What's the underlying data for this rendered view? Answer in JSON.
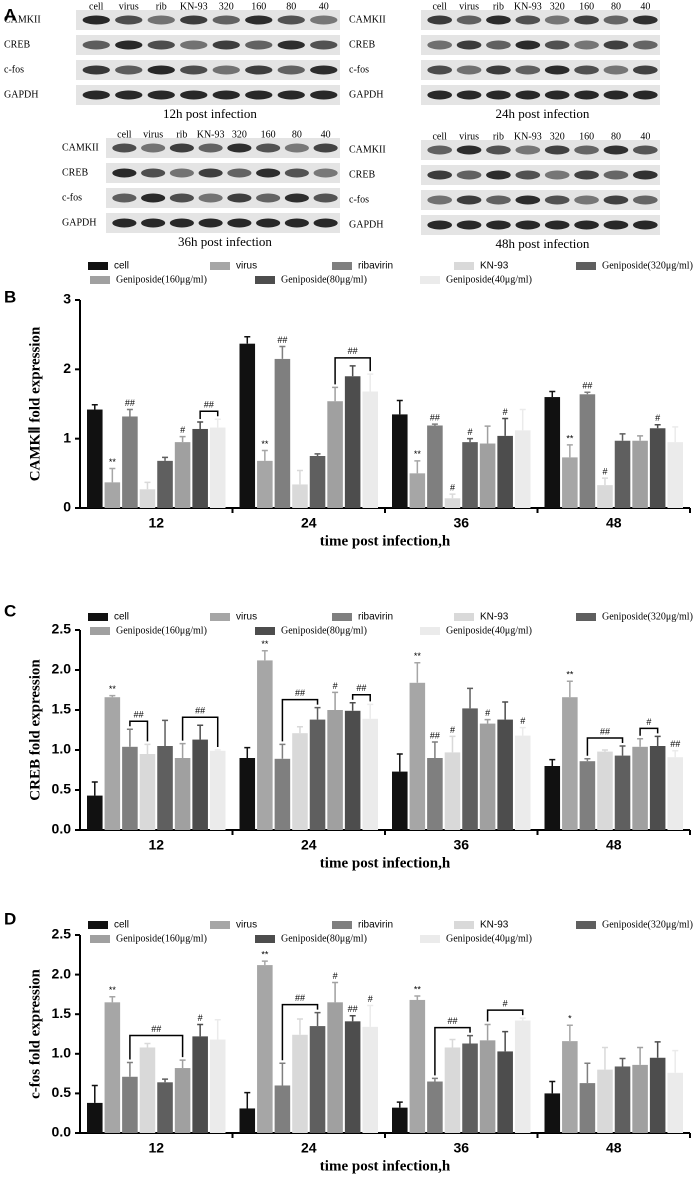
{
  "panel_labels": [
    "A",
    "B",
    "C",
    "D"
  ],
  "blots": [
    {
      "caption": "12h post infection",
      "lanes": [
        "cell",
        "virus",
        "rib",
        "KN-93",
        "320",
        "160",
        "80",
        "40"
      ],
      "rows": [
        "CAMKII",
        "CREB",
        "c-fos",
        "GAPDH"
      ]
    },
    {
      "caption": "24h post infection",
      "lanes": [
        "cell",
        "virus",
        "rib",
        "KN-93",
        "320",
        "160",
        "80",
        "40"
      ],
      "rows": [
        "CAMKII",
        "CREB",
        "c-fos",
        "GAPDH"
      ]
    },
    {
      "caption": "36h post infection",
      "lanes": [
        "cell",
        "virus",
        "rib",
        "KN-93",
        "320",
        "160",
        "80",
        "40"
      ],
      "rows": [
        "CAMKII",
        "CREB",
        "c-fos",
        "GAPDH"
      ]
    },
    {
      "caption": "48h post infection",
      "lanes": [
        "cell",
        "virus",
        "rib",
        "KN-93",
        "320",
        "160",
        "80",
        "40"
      ],
      "rows": [
        "CAMKII",
        "CREB",
        "c-fos",
        "GAPDH"
      ]
    }
  ],
  "chart_data": [
    {
      "type": "bar",
      "y_label": "CAMKⅡ fold expression",
      "x_label": "time post infection,h",
      "categories": [
        "12",
        "24",
        "36",
        "48"
      ],
      "ylim": [
        0,
        3
      ],
      "yticks": [
        0,
        1,
        2,
        3
      ],
      "series": [
        {
          "name": "cell",
          "color": "#111111",
          "values": [
            1.42,
            2.37,
            1.35,
            1.6
          ],
          "errors": [
            0.07,
            0.1,
            0.2,
            0.08
          ],
          "sig": [
            null,
            null,
            null,
            null
          ]
        },
        {
          "name": "virus",
          "color": "#a6a6a6",
          "values": [
            0.37,
            0.68,
            0.5,
            0.73
          ],
          "errors": [
            0.2,
            0.15,
            0.18,
            0.18
          ],
          "sig": [
            "**",
            "**",
            "**",
            "**"
          ]
        },
        {
          "name": "ribavirin",
          "color": "#7f7f7f",
          "values": [
            1.32,
            2.15,
            1.19,
            1.64
          ],
          "errors": [
            0.1,
            0.18,
            0.02,
            0.03
          ],
          "sig": [
            "##",
            "##",
            "##",
            "##"
          ]
        },
        {
          "name": "KN-93",
          "color": "#d9d9d9",
          "values": [
            0.27,
            0.34,
            0.14,
            0.33
          ],
          "errors": [
            0.1,
            0.2,
            0.06,
            0.1
          ],
          "sig": [
            null,
            null,
            "#",
            "#"
          ]
        },
        {
          "name": "Geniposide(320μg/ml)",
          "color": "#5f5f5f",
          "values": [
            0.68,
            0.75,
            0.95,
            0.97
          ],
          "errors": [
            0.05,
            0.03,
            0.05,
            0.1
          ],
          "sig": [
            null,
            null,
            "#",
            null
          ]
        },
        {
          "name": "Geniposide(160μg/ml)",
          "color": "#a0a0a0",
          "values": [
            0.95,
            1.54,
            0.93,
            0.97
          ],
          "errors": [
            0.08,
            0.2,
            0.25,
            0.07
          ],
          "sig": [
            "#",
            null,
            null,
            null
          ]
        },
        {
          "name": "Geniposide(80μg/ml)",
          "color": "#4d4d4d",
          "values": [
            1.14,
            1.9,
            1.04,
            1.15
          ],
          "errors": [
            0.1,
            0.15,
            0.25,
            0.05
          ],
          "sig": [
            null,
            null,
            "#",
            "#"
          ]
        },
        {
          "name": "Geniposide(40μg/ml)",
          "color": "#ebebeb",
          "values": [
            1.16,
            1.68,
            1.12,
            0.95
          ],
          "errors": [
            0.12,
            0.25,
            0.3,
            0.22
          ],
          "sig": [
            null,
            null,
            null,
            null
          ]
        }
      ],
      "brackets": [
        {
          "category": 0,
          "from": 6,
          "to": 7,
          "label": "##"
        },
        {
          "category": 1,
          "from": 5,
          "to": 7,
          "label": "##"
        }
      ]
    },
    {
      "type": "bar",
      "y_label": "CREB fold expression",
      "x_label": "time post infection,h",
      "categories": [
        "12",
        "24",
        "36",
        "48"
      ],
      "ylim": [
        0,
        2.5
      ],
      "yticks": [
        {
          "value": 0,
          "label": "0.0"
        },
        0.5,
        {
          "value": 1,
          "label": "1.0"
        },
        1.5,
        {
          "value": 2,
          "label": "2.0"
        },
        2.5
      ],
      "series": [
        {
          "name": "cell",
          "color": "#111111",
          "values": [
            0.43,
            0.9,
            0.73,
            0.8
          ],
          "errors": [
            0.17,
            0.13,
            0.22,
            0.08
          ],
          "sig": [
            null,
            null,
            null,
            null
          ]
        },
        {
          "name": "virus",
          "color": "#a6a6a6",
          "values": [
            1.66,
            2.12,
            1.84,
            1.66
          ],
          "errors": [
            0.02,
            0.12,
            0.25,
            0.2
          ],
          "sig": [
            "**",
            "**",
            "**",
            "**"
          ]
        },
        {
          "name": "ribavirin",
          "color": "#7f7f7f",
          "values": [
            1.04,
            0.89,
            0.9,
            0.86
          ],
          "errors": [
            0.22,
            0.18,
            0.2,
            0.03
          ],
          "sig": [
            null,
            null,
            "##",
            null
          ]
        },
        {
          "name": "KN-93",
          "color": "#d9d9d9",
          "values": [
            0.95,
            1.21,
            0.97,
            0.98
          ],
          "errors": [
            0.12,
            0.08,
            0.2,
            0.02
          ],
          "sig": [
            null,
            null,
            "#",
            null
          ]
        },
        {
          "name": "Geniposide(320μg/ml)",
          "color": "#5f5f5f",
          "values": [
            1.05,
            1.38,
            1.52,
            0.93
          ],
          "errors": [
            0.32,
            0.15,
            0.25,
            0.12
          ],
          "sig": [
            null,
            null,
            null,
            null
          ]
        },
        {
          "name": "Geniposide(160μg/ml)",
          "color": "#a0a0a0",
          "values": [
            0.9,
            1.5,
            1.33,
            1.04
          ],
          "errors": [
            0.18,
            0.22,
            0.05,
            0.1
          ],
          "sig": [
            null,
            "#",
            "#",
            null
          ]
        },
        {
          "name": "Geniposide(80μg/ml)",
          "color": "#4d4d4d",
          "values": [
            1.13,
            1.49,
            1.38,
            1.05
          ],
          "errors": [
            0.18,
            0.1,
            0.22,
            0.12
          ],
          "sig": [
            null,
            null,
            null,
            null
          ]
        },
        {
          "name": "Geniposide(40μg/ml)",
          "color": "#ebebeb",
          "values": [
            0.99,
            1.39,
            1.18,
            0.91
          ],
          "errors": [
            0.01,
            0.18,
            0.1,
            0.08
          ],
          "sig": [
            null,
            null,
            "#",
            "##"
          ]
        }
      ],
      "brackets": [
        {
          "category": 0,
          "from": 2,
          "to": 3,
          "label": "##"
        },
        {
          "category": 0,
          "from": 5,
          "to": 7,
          "label": "##"
        },
        {
          "category": 1,
          "from": 2,
          "to": 4,
          "label": "##"
        },
        {
          "category": 1,
          "from": 6,
          "to": 7,
          "label": "##"
        },
        {
          "category": 3,
          "from": 2,
          "to": 4,
          "label": "##"
        },
        {
          "category": 3,
          "from": 5,
          "to": 6,
          "label": "#"
        }
      ]
    },
    {
      "type": "bar",
      "y_label": "c-fos fold expression",
      "x_label": "time post infection,h",
      "categories": [
        "12",
        "24",
        "36",
        "48"
      ],
      "ylim": [
        0,
        2.5
      ],
      "yticks": [
        {
          "value": 0,
          "label": "0.0"
        },
        0.5,
        {
          "value": 1,
          "label": "1.0"
        },
        1.5,
        {
          "value": 2,
          "label": "2.0"
        },
        2.5
      ],
      "series": [
        {
          "name": "cell",
          "color": "#111111",
          "values": [
            0.38,
            0.31,
            0.32,
            0.5
          ],
          "errors": [
            0.22,
            0.2,
            0.07,
            0.15
          ],
          "sig": [
            null,
            null,
            null,
            null
          ]
        },
        {
          "name": "virus",
          "color": "#a6a6a6",
          "values": [
            1.65,
            2.12,
            1.68,
            1.16
          ],
          "errors": [
            0.07,
            0.05,
            0.05,
            0.2
          ],
          "sig": [
            "**",
            "**",
            "**",
            "*"
          ]
        },
        {
          "name": "ribavirin",
          "color": "#7f7f7f",
          "values": [
            0.71,
            0.6,
            0.65,
            0.63
          ],
          "errors": [
            0.18,
            0.28,
            0.04,
            0.25
          ],
          "sig": [
            null,
            null,
            null,
            null
          ]
        },
        {
          "name": "KN-93",
          "color": "#d9d9d9",
          "values": [
            1.08,
            1.24,
            1.08,
            0.8
          ],
          "errors": [
            0.05,
            0.2,
            0.1,
            0.28
          ],
          "sig": [
            null,
            null,
            null,
            null
          ]
        },
        {
          "name": "Geniposide(320μg/ml)",
          "color": "#5f5f5f",
          "values": [
            0.64,
            1.35,
            1.13,
            0.84
          ],
          "errors": [
            0.04,
            0.17,
            0.1,
            0.1
          ],
          "sig": [
            null,
            null,
            null,
            null
          ]
        },
        {
          "name": "Geniposide(160μg/ml)",
          "color": "#a0a0a0",
          "values": [
            0.82,
            1.65,
            1.17,
            0.86
          ],
          "errors": [
            0.1,
            0.25,
            0.2,
            0.22
          ],
          "sig": [
            null,
            "#",
            null,
            null
          ]
        },
        {
          "name": "Geniposide(80μg/ml)",
          "color": "#4d4d4d",
          "values": [
            1.22,
            1.41,
            1.03,
            0.95
          ],
          "errors": [
            0.15,
            0.07,
            0.25,
            0.2
          ],
          "sig": [
            "#",
            "##",
            null,
            null
          ]
        },
        {
          "name": "Geniposide(40μg/ml)",
          "color": "#ebebeb",
          "values": [
            1.18,
            1.34,
            1.42,
            0.76
          ],
          "errors": [
            0.25,
            0.27,
            0.03,
            0.28
          ],
          "sig": [
            null,
            "#",
            null,
            null
          ]
        }
      ],
      "brackets": [
        {
          "category": 0,
          "from": 2,
          "to": 5,
          "label": "##"
        },
        {
          "category": 1,
          "from": 2,
          "to": 4,
          "label": "##"
        },
        {
          "category": 2,
          "from": 2,
          "to": 4,
          "label": "##"
        },
        {
          "category": 2,
          "from": 5,
          "to": 7,
          "label": "#"
        }
      ]
    }
  ]
}
